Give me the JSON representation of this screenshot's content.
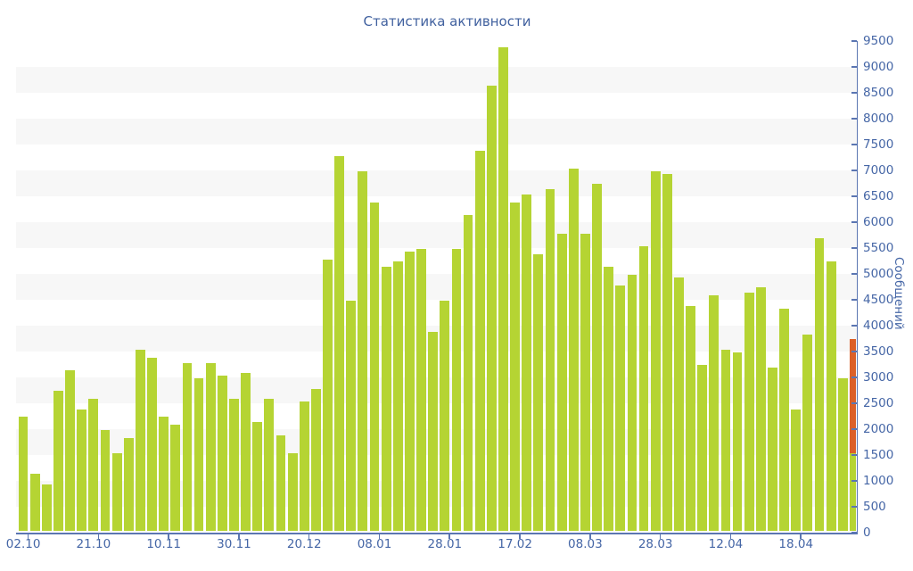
{
  "title": "Статистика активности",
  "colors": {
    "bar_green": "#b5d433",
    "bar_orange": "#dc6028",
    "axis": "#5b76b2",
    "text": "#4566a6",
    "title_text": "#41619f",
    "stripe": "#f7f7f7",
    "background": "#ffffff"
  },
  "chart_data": {
    "type": "bar",
    "title": "Статистика активности",
    "xlabel": "",
    "ylabel": "Сообщений",
    "ylim": [
      0,
      9500
    ],
    "ytick_step": 500,
    "y_tick_labels": [
      "0",
      "500",
      "1000",
      "1500",
      "2000",
      "2500",
      "3000",
      "3500",
      "4000",
      "4500",
      "5000",
      "5500",
      "6000",
      "6500",
      "7000",
      "7500",
      "8000",
      "8500",
      "9000",
      "9500"
    ],
    "x_tick_labels": [
      "02.10",
      "21.10",
      "10.11",
      "30.11",
      "20.12",
      "08.01",
      "28.01",
      "17.02",
      "08.03",
      "28.03",
      "12.04",
      "18.04"
    ],
    "x_tick_every_n_bars": 6,
    "bar_count": 72,
    "legend": "none",
    "grid": "alternating horizontal stripes every 500 units",
    "values": [
      2200,
      1100,
      900,
      2700,
      3100,
      2350,
      2550,
      1950,
      1500,
      1800,
      3500,
      3350,
      2200,
      2050,
      3250,
      2950,
      3250,
      3000,
      2550,
      3050,
      2100,
      2550,
      1850,
      1500,
      2500,
      2750,
      5250,
      7250,
      4450,
      6950,
      6350,
      5100,
      5200,
      5400,
      5450,
      3850,
      4450,
      5450,
      6100,
      7350,
      8600,
      9350,
      6350,
      6500,
      5350,
      6600,
      5750,
      7000,
      5750,
      6700,
      5100,
      4750,
      4950,
      5500,
      6950,
      6900,
      4900,
      4350,
      3200,
      4550,
      3500,
      3450,
      4600,
      4700,
      3150,
      4300,
      2350,
      3800,
      5650,
      5200,
      2950,
      3700
    ],
    "highlighted_last_bar": {
      "index": 71,
      "green_segment": [
        0,
        1500
      ],
      "orange_segment": [
        1500,
        3700
      ],
      "total": 3700
    }
  }
}
